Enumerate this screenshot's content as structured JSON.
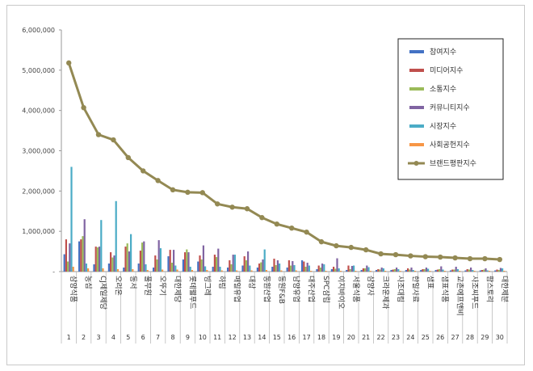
{
  "chart_data": {
    "type": "bar",
    "title": "",
    "xlabel": "",
    "ylabel": "",
    "ylim": [
      0,
      6000000
    ],
    "yticks": [
      "6,000,000",
      "5,000,000",
      "4,000,000",
      "3,000,000",
      "2,000,000",
      "1,000,000",
      "-"
    ],
    "legend_position": "top-right",
    "grid": false,
    "indices": [
      "1",
      "2",
      "3",
      "4",
      "5",
      "6",
      "7",
      "8",
      "9",
      "10",
      "11",
      "12",
      "13",
      "14",
      "15",
      "16",
      "17",
      "18",
      "19",
      "20",
      "21",
      "22",
      "23",
      "24",
      "25",
      "26",
      "27",
      "28",
      "29",
      "30"
    ],
    "categories": [
      "삼양식품",
      "농심",
      "CJ제일제당",
      "오리온",
      "동서",
      "풀무원",
      "오뚜기",
      "대한제당",
      "롯데웰푸드",
      "빙그레",
      "하림",
      "매일유업",
      "대상",
      "동원산업",
      "동원F&B",
      "남양유업",
      "대주산업",
      "SPC삼립",
      "이지바이오",
      "서울식품",
      "삼양사",
      "크라운제과",
      "사조대림",
      "한일사료",
      "샘표",
      "샘표식품",
      "교촌에프앤비",
      "사조씨푸드",
      "팜스토리",
      "대한제분"
    ],
    "series": [
      {
        "name": "참여지수",
        "color": "#4472c4",
        "type": "bar",
        "values": [
          430000,
          750000,
          180000,
          200000,
          100000,
          200000,
          100000,
          380000,
          300000,
          250000,
          120000,
          100000,
          150000,
          100000,
          120000,
          100000,
          280000,
          60000,
          60000,
          40000,
          40000,
          40000,
          40000,
          40000,
          40000,
          40000,
          30000,
          30000,
          30000,
          30000
        ]
      },
      {
        "name": "미디어지수",
        "color": "#c0504d",
        "type": "bar",
        "values": [
          800000,
          800000,
          620000,
          480000,
          620000,
          520000,
          400000,
          540000,
          480000,
          400000,
          420000,
          280000,
          380000,
          200000,
          320000,
          280000,
          250000,
          150000,
          120000,
          150000,
          80000,
          60000,
          50000,
          80000,
          60000,
          50000,
          50000,
          60000,
          40000,
          50000
        ]
      },
      {
        "name": "소통지수",
        "color": "#9bbb59",
        "type": "bar",
        "values": [
          250000,
          880000,
          600000,
          350000,
          700000,
          720000,
          300000,
          220000,
          550000,
          300000,
          360000,
          180000,
          280000,
          230000,
          160000,
          150000,
          120000,
          100000,
          70000,
          60000,
          80000,
          50000,
          60000,
          50000,
          60000,
          60000,
          50000,
          50000,
          50000,
          40000
        ]
      },
      {
        "name": "커뮤니티지수",
        "color": "#8064a2",
        "type": "bar",
        "values": [
          700000,
          1300000,
          620000,
          400000,
          500000,
          750000,
          780000,
          540000,
          480000,
          650000,
          570000,
          420000,
          500000,
          300000,
          280000,
          260000,
          220000,
          200000,
          330000,
          140000,
          150000,
          100000,
          100000,
          100000,
          100000,
          130000,
          120000,
          100000,
          80000,
          90000
        ]
      },
      {
        "name": "시장지수",
        "color": "#4bacc6",
        "type": "bar",
        "values": [
          2600000,
          200000,
          1280000,
          1750000,
          930000,
          180000,
          580000,
          150000,
          120000,
          130000,
          120000,
          420000,
          150000,
          550000,
          200000,
          160000,
          150000,
          180000,
          80000,
          150000,
          110000,
          80000,
          60000,
          40000,
          70000,
          50000,
          60000,
          40000,
          30000,
          80000
        ]
      },
      {
        "name": "사회공헌지수",
        "color": "#f79646",
        "type": "bar",
        "values": [
          120000,
          80000,
          80000,
          60000,
          60000,
          40000,
          50000,
          50000,
          40000,
          40000,
          30000,
          30000,
          30000,
          40000,
          30000,
          30000,
          20000,
          20000,
          20000,
          20000,
          20000,
          20000,
          20000,
          20000,
          20000,
          20000,
          20000,
          20000,
          20000,
          20000
        ]
      },
      {
        "name": "브랜드평판지수",
        "color": "#938953",
        "type": "line",
        "values": [
          5180000,
          4070000,
          3400000,
          3270000,
          2830000,
          2500000,
          2260000,
          2030000,
          1970000,
          1960000,
          1680000,
          1600000,
          1560000,
          1340000,
          1180000,
          1080000,
          980000,
          740000,
          640000,
          600000,
          540000,
          440000,
          420000,
          390000,
          370000,
          360000,
          340000,
          320000,
          320000,
          300000
        ]
      }
    ]
  }
}
